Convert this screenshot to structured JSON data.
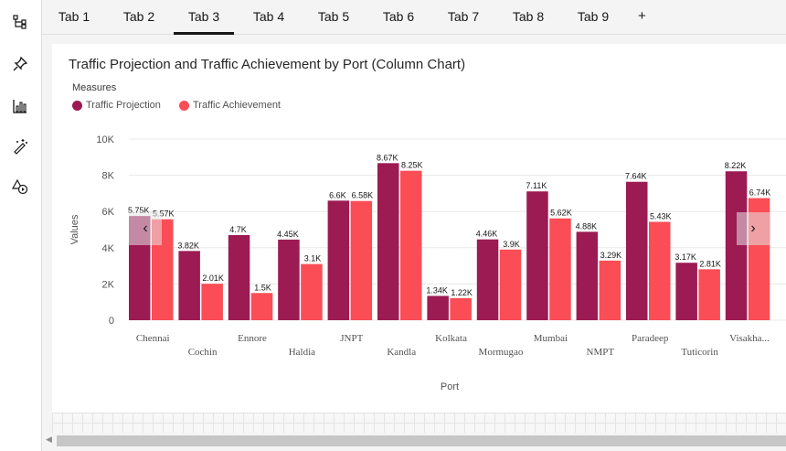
{
  "tabs": [
    {
      "label": "Tab 1",
      "active": false
    },
    {
      "label": "Tab 2",
      "active": false
    },
    {
      "label": "Tab 3",
      "active": true
    },
    {
      "label": "Tab 4",
      "active": false
    },
    {
      "label": "Tab 5",
      "active": false
    },
    {
      "label": "Tab 6",
      "active": false
    },
    {
      "label": "Tab 7",
      "active": false
    },
    {
      "label": "Tab 8",
      "active": false
    },
    {
      "label": "Tab 9",
      "active": false
    }
  ],
  "tab_add_label": "+",
  "sidebar": {
    "icons": [
      "hierarchy-icon",
      "pin-icon",
      "bar-chart-icon",
      "magic-wand-icon",
      "shapes-play-icon"
    ]
  },
  "widget": {
    "title": "Traffic Projection and Traffic Achievement by Port (Column Chart)",
    "legend_title": "Measures"
  },
  "colors": {
    "projection": "#9b1b52",
    "achievement": "#fa4d56",
    "axis_text": "#525252",
    "grid": "#e8e8e8"
  },
  "nav": {
    "prev": "‹",
    "next": "›"
  },
  "chart_data": {
    "type": "bar",
    "title": "Traffic Projection and Traffic Achievement by Port (Column Chart)",
    "xlabel": "Port",
    "ylabel": "Values",
    "ylim": [
      0,
      10000
    ],
    "yticks": [
      0,
      2000,
      4000,
      6000,
      8000,
      10000
    ],
    "ytick_labels": [
      "0",
      "2K",
      "4K",
      "6K",
      "8K",
      "10K"
    ],
    "legend_title": "Measures",
    "legend_position": "top-left",
    "grid": true,
    "categories": [
      "Chennai",
      "Cochin",
      "Ennore",
      "Haldia",
      "JNPT",
      "Kandla",
      "Kolkata",
      "Mormugao",
      "Mumbai",
      "NMPT",
      "Paradeep",
      "Tuticorin",
      "Visakha..."
    ],
    "series": [
      {
        "name": "Traffic Projection",
        "values": [
          5750,
          3820,
          4700,
          4450,
          6600,
          8670,
          1340,
          4460,
          7110,
          4880,
          7640,
          3170,
          8220
        ],
        "labels": [
          "5.75K",
          "3.82K",
          "4.7K",
          "4.45K",
          "6.6K",
          "8.67K",
          "1.34K",
          "4.46K",
          "7.11K",
          "4.88K",
          "7.64K",
          "3.17K",
          "8.22K"
        ]
      },
      {
        "name": "Traffic Achievement",
        "values": [
          5570,
          2010,
          1500,
          3100,
          6580,
          8250,
          1220,
          3900,
          5620,
          3290,
          5430,
          2810,
          6740
        ],
        "labels": [
          "5.57K",
          "2.01K",
          "1.5K",
          "3.1K",
          "6.58K",
          "8.25K",
          "1.22K",
          "3.9K",
          "5.62K",
          "3.29K",
          "5.43K",
          "2.81K",
          "6.74K"
        ]
      }
    ]
  }
}
